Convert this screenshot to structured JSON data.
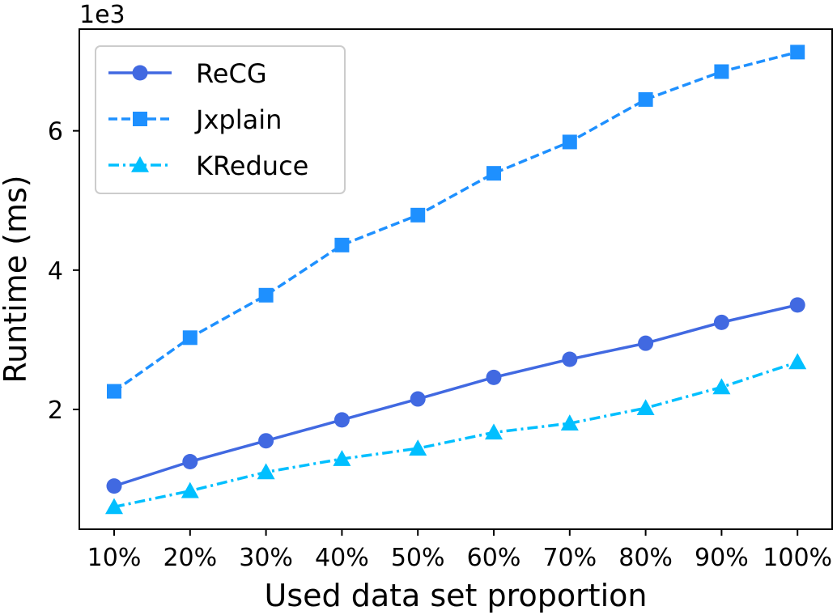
{
  "chart_data": {
    "type": "line",
    "categories": [
      "10%",
      "20%",
      "30%",
      "40%",
      "50%",
      "60%",
      "70%",
      "80%",
      "90%",
      "100%"
    ],
    "series": [
      {
        "name": "ReCG",
        "values": [
          0.9,
          1.25,
          1.55,
          1.85,
          2.15,
          2.46,
          2.72,
          2.95,
          3.25,
          3.5
        ],
        "color": "#4169e1",
        "dash": "solid",
        "marker": "circle"
      },
      {
        "name": "Jxplain",
        "values": [
          2.26,
          3.03,
          3.64,
          4.36,
          4.79,
          5.39,
          5.84,
          6.45,
          6.85,
          7.13
        ],
        "color": "#1e90ff",
        "dash": "dashed",
        "marker": "square"
      },
      {
        "name": "KReduce",
        "values": [
          0.6,
          0.83,
          1.1,
          1.29,
          1.44,
          1.67,
          1.8,
          2.02,
          2.32,
          2.68
        ],
        "color": "#00bfff",
        "dash": "dashdot",
        "marker": "triangle"
      }
    ],
    "title": "",
    "xlabel": "Used data set proportion",
    "ylabel": "Runtime (ms)",
    "y_scale_label": "1e3",
    "yticks": [
      2,
      4,
      6
    ],
    "ylim": [
      0.28,
      7.46
    ],
    "grid": false,
    "legend_position": "top-left"
  }
}
